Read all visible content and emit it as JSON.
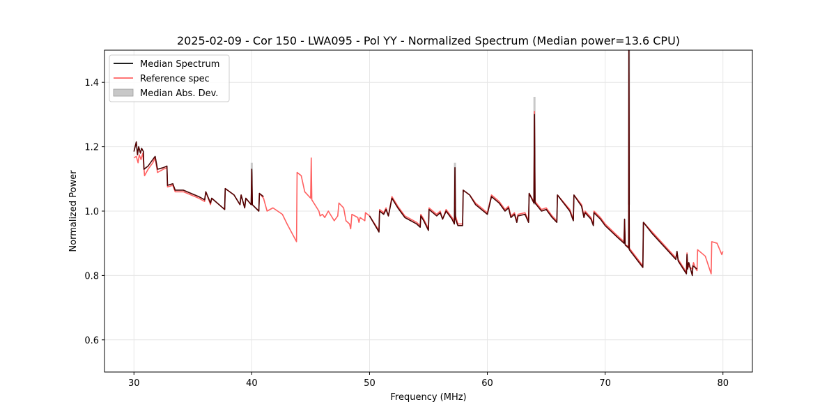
{
  "chart_data": {
    "type": "line",
    "title": "2025-02-09 - Cor 150 - LWA095 - Pol YY - Normalized Spectrum (Median power=13.6 CPU)",
    "xlabel": "Frequency (MHz)",
    "ylabel": "Normalized Power",
    "xlim": [
      27.5,
      82.5
    ],
    "ylim": [
      0.5,
      1.5
    ],
    "xticks": [
      30,
      40,
      50,
      60,
      70,
      80
    ],
    "yticks": [
      0.6,
      0.8,
      1.0,
      1.2,
      1.4
    ],
    "xtick_labels": [
      "30",
      "40",
      "50",
      "60",
      "70",
      "80"
    ],
    "ytick_labels": [
      "0.6",
      "0.8",
      "1.0",
      "1.2",
      "1.4"
    ],
    "grid": true,
    "legend_position": "top-left",
    "legend": [
      {
        "label": "Median Spectrum",
        "color": "#000000",
        "kind": "line"
      },
      {
        "label": "Reference spec",
        "color": "#ff6060",
        "kind": "line"
      },
      {
        "label": "Median Abs. Dev.",
        "color": "#c8c8c8",
        "kind": "patch"
      }
    ],
    "series": [
      {
        "name": "Reference spec",
        "color": "#ff6060",
        "points": [
          [
            30.0,
            1.165
          ],
          [
            30.2,
            1.17
          ],
          [
            30.35,
            1.15
          ],
          [
            30.45,
            1.175
          ],
          [
            30.6,
            1.16
          ],
          [
            30.75,
            1.18
          ],
          [
            30.9,
            1.11
          ],
          [
            31.2,
            1.13
          ],
          [
            31.6,
            1.15
          ],
          [
            31.8,
            1.165
          ],
          [
            32.0,
            1.12
          ],
          [
            32.5,
            1.13
          ],
          [
            32.8,
            1.135
          ],
          [
            32.85,
            1.075
          ],
          [
            33.3,
            1.08
          ],
          [
            33.5,
            1.06
          ],
          [
            34.2,
            1.06
          ],
          [
            35.5,
            1.04
          ],
          [
            36.0,
            1.03
          ],
          [
            36.1,
            1.06
          ],
          [
            36.5,
            1.02
          ],
          [
            36.6,
            1.04
          ],
          [
            37.7,
            1.005
          ],
          [
            37.75,
            1.07
          ],
          [
            38.5,
            1.05
          ],
          [
            39.0,
            1.02
          ],
          [
            39.1,
            1.05
          ],
          [
            39.4,
            1.01
          ],
          [
            39.5,
            1.04
          ],
          [
            39.95,
            1.02
          ],
          [
            40.0,
            1.12
          ],
          [
            40.05,
            1.02
          ],
          [
            40.6,
            1.0
          ],
          [
            40.65,
            1.055
          ],
          [
            41.0,
            1.04
          ],
          [
            41.3,
            1.0
          ],
          [
            41.8,
            1.01
          ],
          [
            42.6,
            0.99
          ],
          [
            43.0,
            0.96
          ],
          [
            43.8,
            0.905
          ],
          [
            43.85,
            1.12
          ],
          [
            44.2,
            1.11
          ],
          [
            44.5,
            1.06
          ],
          [
            45.0,
            1.04
          ],
          [
            45.05,
            1.165
          ],
          [
            45.1,
            1.035
          ],
          [
            45.7,
            1.0
          ],
          [
            45.8,
            0.985
          ],
          [
            46.0,
            0.99
          ],
          [
            46.2,
            0.98
          ],
          [
            46.5,
            1.0
          ],
          [
            47.0,
            0.97
          ],
          [
            47.3,
            0.985
          ],
          [
            47.4,
            1.025
          ],
          [
            47.8,
            1.01
          ],
          [
            48.0,
            0.97
          ],
          [
            48.3,
            0.96
          ],
          [
            48.4,
            0.945
          ],
          [
            48.5,
            0.99
          ],
          [
            49.0,
            0.98
          ],
          [
            49.1,
            0.965
          ],
          [
            49.2,
            0.98
          ],
          [
            49.6,
            0.97
          ],
          [
            49.65,
            0.995
          ],
          [
            50.0,
            0.985
          ],
          [
            50.8,
            0.94
          ],
          [
            50.85,
            1.005
          ],
          [
            51.2,
            0.995
          ],
          [
            51.4,
            1.01
          ],
          [
            51.6,
            0.985
          ],
          [
            51.9,
            1.045
          ],
          [
            52.4,
            1.015
          ],
          [
            53.0,
            0.985
          ],
          [
            54.0,
            0.965
          ],
          [
            54.3,
            0.955
          ],
          [
            54.35,
            0.99
          ],
          [
            54.6,
            0.975
          ],
          [
            55.0,
            0.945
          ],
          [
            55.05,
            1.01
          ],
          [
            55.7,
            0.99
          ],
          [
            56.0,
            1.0
          ],
          [
            56.2,
            0.975
          ],
          [
            56.5,
            1.005
          ],
          [
            57.0,
            0.98
          ],
          [
            57.2,
            0.97
          ],
          [
            57.3,
            0.985
          ],
          [
            57.5,
            0.96
          ],
          [
            57.9,
            0.96
          ],
          [
            57.95,
            1.065
          ],
          [
            58.5,
            1.05
          ],
          [
            59.0,
            1.025
          ],
          [
            60.0,
            0.995
          ],
          [
            60.35,
            1.05
          ],
          [
            61.0,
            1.03
          ],
          [
            61.5,
            1.005
          ],
          [
            61.8,
            1.015
          ],
          [
            62.0,
            0.985
          ],
          [
            62.3,
            0.995
          ],
          [
            62.5,
            0.97
          ],
          [
            62.6,
            0.99
          ],
          [
            63.2,
            0.995
          ],
          [
            63.5,
            0.97
          ],
          [
            63.55,
            1.055
          ],
          [
            63.95,
            1.03
          ],
          [
            64.0,
            1.31
          ],
          [
            64.05,
            1.03
          ],
          [
            64.6,
            1.005
          ],
          [
            65.0,
            1.01
          ],
          [
            65.5,
            0.985
          ],
          [
            65.9,
            0.97
          ],
          [
            65.95,
            1.05
          ],
          [
            67.0,
            1.005
          ],
          [
            67.3,
            0.975
          ],
          [
            67.35,
            1.05
          ],
          [
            68.0,
            1.02
          ],
          [
            68.2,
            0.985
          ],
          [
            68.3,
            1.0
          ],
          [
            68.8,
            0.98
          ],
          [
            69.0,
            0.96
          ],
          [
            69.05,
            1.0
          ],
          [
            69.6,
            0.98
          ],
          [
            70.0,
            0.96
          ],
          [
            71.0,
            0.925
          ],
          [
            71.6,
            0.905
          ],
          [
            71.65,
            0.96
          ],
          [
            71.7,
            0.895
          ],
          [
            72.0,
            0.89
          ],
          [
            72.02,
            1.43
          ],
          [
            72.05,
            0.885
          ],
          [
            73.2,
            0.83
          ],
          [
            73.25,
            0.965
          ],
          [
            74.0,
            0.935
          ],
          [
            75.0,
            0.895
          ],
          [
            75.5,
            0.875
          ],
          [
            76.0,
            0.855
          ],
          [
            76.1,
            0.87
          ],
          [
            76.2,
            0.85
          ],
          [
            76.9,
            0.81
          ],
          [
            76.95,
            0.87
          ],
          [
            77.0,
            0.83
          ],
          [
            77.4,
            0.82
          ],
          [
            77.5,
            0.84
          ],
          [
            77.7,
            0.82
          ],
          [
            77.8,
            0.815
          ],
          [
            77.85,
            0.88
          ],
          [
            78.5,
            0.86
          ],
          [
            79.0,
            0.805
          ],
          [
            79.05,
            0.905
          ],
          [
            79.5,
            0.9
          ],
          [
            79.9,
            0.865
          ],
          [
            80.0,
            0.875
          ]
        ]
      },
      {
        "name": "Median Spectrum",
        "color": "#000000",
        "segments": [
          [
            [
              30.0,
              1.185
            ],
            [
              30.2,
              1.215
            ],
            [
              30.3,
              1.175
            ],
            [
              30.4,
              1.2
            ],
            [
              30.55,
              1.18
            ],
            [
              30.65,
              1.195
            ],
            [
              30.8,
              1.185
            ],
            [
              30.85,
              1.13
            ],
            [
              31.2,
              1.14
            ],
            [
              31.6,
              1.16
            ],
            [
              31.8,
              1.17
            ],
            [
              32.0,
              1.13
            ],
            [
              32.5,
              1.135
            ],
            [
              32.8,
              1.14
            ],
            [
              32.85,
              1.08
            ],
            [
              33.3,
              1.085
            ],
            [
              33.5,
              1.065
            ],
            [
              34.2,
              1.065
            ],
            [
              35.5,
              1.045
            ],
            [
              36.0,
              1.035
            ],
            [
              36.1,
              1.06
            ],
            [
              36.5,
              1.025
            ],
            [
              36.6,
              1.04
            ],
            [
              37.7,
              1.005
            ],
            [
              37.75,
              1.07
            ],
            [
              38.5,
              1.05
            ],
            [
              39.0,
              1.02
            ],
            [
              39.1,
              1.05
            ],
            [
              39.4,
              1.01
            ],
            [
              39.5,
              1.04
            ],
            [
              39.95,
              1.02
            ],
            [
              40.0,
              1.13
            ],
            [
              40.05,
              1.02
            ],
            [
              40.6,
              1.0
            ],
            [
              40.65,
              1.055
            ],
            [
              41.0,
              1.045
            ]
          ],
          [
            [
              50.0,
              0.985
            ],
            [
              50.8,
              0.935
            ],
            [
              50.85,
              1.0
            ],
            [
              51.2,
              0.99
            ],
            [
              51.4,
              1.005
            ],
            [
              51.6,
              0.985
            ],
            [
              51.9,
              1.04
            ],
            [
              52.4,
              1.01
            ],
            [
              53.0,
              0.98
            ],
            [
              54.0,
              0.96
            ],
            [
              54.3,
              0.95
            ],
            [
              54.35,
              0.985
            ],
            [
              54.6,
              0.97
            ],
            [
              55.0,
              0.94
            ],
            [
              55.05,
              1.005
            ],
            [
              55.7,
              0.985
            ],
            [
              56.0,
              0.995
            ],
            [
              56.2,
              0.975
            ],
            [
              56.5,
              1.0
            ],
            [
              57.0,
              0.975
            ],
            [
              57.2,
              0.96
            ],
            [
              57.25,
              1.135
            ],
            [
              57.3,
              0.975
            ],
            [
              57.5,
              0.955
            ],
            [
              57.9,
              0.955
            ],
            [
              57.95,
              1.065
            ],
            [
              58.5,
              1.05
            ],
            [
              59.0,
              1.02
            ],
            [
              60.0,
              0.99
            ],
            [
              60.35,
              1.045
            ],
            [
              61.0,
              1.025
            ],
            [
              61.5,
              1.0
            ],
            [
              61.8,
              1.01
            ],
            [
              62.0,
              0.98
            ],
            [
              62.3,
              0.99
            ],
            [
              62.5,
              0.965
            ],
            [
              62.6,
              0.985
            ],
            [
              63.2,
              0.99
            ],
            [
              63.5,
              0.965
            ],
            [
              63.55,
              1.055
            ],
            [
              63.95,
              1.025
            ],
            [
              64.0,
              1.3
            ],
            [
              64.05,
              1.025
            ],
            [
              64.6,
              1.0
            ],
            [
              65.0,
              1.005
            ],
            [
              65.5,
              0.98
            ],
            [
              65.9,
              0.965
            ],
            [
              65.95,
              1.05
            ],
            [
              67.0,
              1.0
            ],
            [
              67.3,
              0.97
            ],
            [
              67.35,
              1.05
            ],
            [
              68.0,
              1.015
            ],
            [
              68.2,
              0.98
            ],
            [
              68.3,
              0.995
            ],
            [
              68.8,
              0.975
            ],
            [
              69.0,
              0.955
            ],
            [
              69.05,
              0.995
            ],
            [
              69.6,
              0.975
            ],
            [
              70.0,
              0.955
            ],
            [
              71.0,
              0.92
            ],
            [
              71.6,
              0.9
            ],
            [
              71.65,
              0.975
            ],
            [
              71.7,
              0.895
            ],
            [
              72.0,
              0.885
            ],
            [
              72.02,
              1.5
            ],
            [
              72.05,
              0.88
            ],
            [
              73.2,
              0.825
            ],
            [
              73.25,
              0.965
            ],
            [
              74.0,
              0.93
            ],
            [
              75.0,
              0.89
            ],
            [
              75.5,
              0.87
            ],
            [
              76.0,
              0.85
            ],
            [
              76.1,
              0.875
            ],
            [
              76.2,
              0.845
            ],
            [
              76.9,
              0.805
            ],
            [
              76.95,
              0.865
            ],
            [
              77.0,
              0.82
            ],
            [
              77.1,
              0.84
            ],
            [
              77.4,
              0.8
            ],
            [
              77.45,
              0.83
            ],
            [
              77.8,
              0.82
            ]
          ]
        ]
      }
    ],
    "mad_spikes": [
      {
        "x": 40.0,
        "y_top": 1.15
      },
      {
        "x": 57.25,
        "y_top": 1.15
      },
      {
        "x": 64.0,
        "y_top": 1.355
      },
      {
        "x": 72.02,
        "y_top": 1.5
      }
    ]
  }
}
